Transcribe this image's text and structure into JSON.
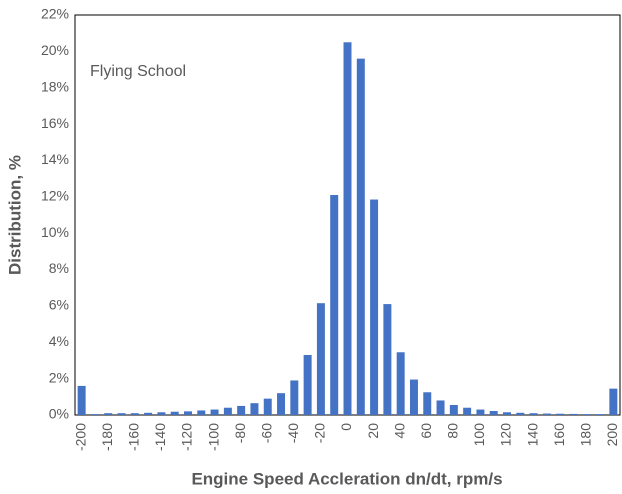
{
  "chart_data": {
    "type": "bar",
    "annotation": "Flying School",
    "xlabel": "Engine Speed Accleration dn/dt, rpm/s",
    "ylabel": "Distribution, %",
    "categories": [
      "-200",
      null,
      "-180",
      null,
      "-160",
      null,
      "-140",
      null,
      "-120",
      null,
      "-100",
      null,
      "-80",
      null,
      "-60",
      null,
      "-40",
      null,
      "-20",
      null,
      "0",
      null,
      "20",
      null,
      "40",
      null,
      "60",
      null,
      "80",
      null,
      "100",
      null,
      "120",
      null,
      "140",
      null,
      "160",
      null,
      "180",
      null,
      "200"
    ],
    "values": [
      1.6,
      0.05,
      0.1,
      0.1,
      0.1,
      0.12,
      0.15,
      0.18,
      0.2,
      0.25,
      0.3,
      0.4,
      0.5,
      0.65,
      0.9,
      1.2,
      1.9,
      3.3,
      6.15,
      12.1,
      20.5,
      19.6,
      11.85,
      6.1,
      3.45,
      1.95,
      1.25,
      0.8,
      0.55,
      0.4,
      0.3,
      0.22,
      0.15,
      0.12,
      0.1,
      0.08,
      0.07,
      0.06,
      0.05,
      0.05,
      1.45
    ],
    "color": "#4472c4",
    "ylim": [
      0,
      22
    ],
    "yticks": [
      {
        "value": 0,
        "label": "0%"
      },
      {
        "value": 2,
        "label": "2%"
      },
      {
        "value": 4,
        "label": "4%"
      },
      {
        "value": 6,
        "label": "6%"
      },
      {
        "value": 8,
        "label": "8%"
      },
      {
        "value": 10,
        "label": "10%"
      },
      {
        "value": 12,
        "label": "12%"
      },
      {
        "value": 14,
        "label": "14%"
      },
      {
        "value": 16,
        "label": "16%"
      },
      {
        "value": 18,
        "label": "18%"
      },
      {
        "value": 20,
        "label": "20%"
      },
      {
        "value": 22,
        "label": "22%"
      }
    ],
    "grid": false
  }
}
